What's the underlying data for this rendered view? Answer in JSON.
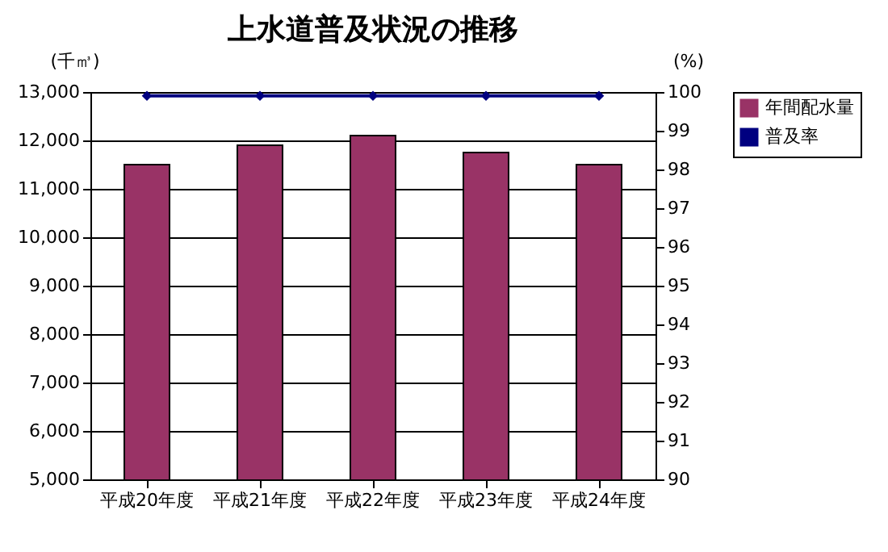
{
  "chart_data": {
    "type": "bar",
    "title": "上水道普及状況の推移",
    "ylabel": "(千㎥)",
    "y2label": "(%)",
    "categories": [
      "平成20年度",
      "平成21年度",
      "平成22年度",
      "平成23年度",
      "平成24年度"
    ],
    "series": [
      {
        "name": "年間配水量",
        "color": "#993366",
        "values": [
          11500,
          11900,
          12100,
          11750,
          11500
        ]
      },
      {
        "name": "普及率",
        "type": "line",
        "axis": "y2",
        "color": "#000080",
        "values": [
          99.9,
          99.9,
          99.9,
          99.9,
          99.9
        ],
        "marker": "diamond"
      }
    ],
    "ylim": [
      5000,
      13000
    ],
    "yticks": [
      {
        "value": 5000,
        "label": "5,000"
      },
      {
        "value": 6000,
        "label": "6,000"
      },
      {
        "value": 7000,
        "label": "7,000"
      },
      {
        "value": 8000,
        "label": "8,000"
      },
      {
        "value": 9000,
        "label": "9,000"
      },
      {
        "value": 10000,
        "label": "10,000"
      },
      {
        "value": 11000,
        "label": "11,000"
      },
      {
        "value": 12000,
        "label": "12,000"
      },
      {
        "value": 13000,
        "label": "13,000"
      }
    ],
    "y2lim": [
      90,
      100
    ],
    "y2ticks": [
      90,
      91,
      92,
      93,
      94,
      95,
      96,
      97,
      98,
      99,
      100
    ],
    "grid": "y",
    "legend": "right"
  }
}
